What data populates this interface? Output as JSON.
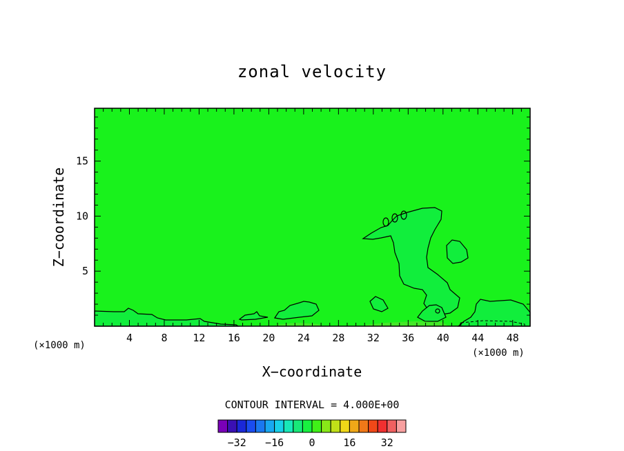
{
  "chart_data": {
    "type": "heatmap",
    "title": "zonal velocity",
    "xlabel": "X−coordinate",
    "ylabel": "Z−coordinate",
    "x_unit_left": "(×1000 m)",
    "x_unit_right": "(×1000 m)",
    "xlim": [
      0,
      50
    ],
    "ylim": [
      0,
      19.8
    ],
    "x_ticks": [
      4,
      8,
      12,
      16,
      20,
      24,
      28,
      32,
      36,
      40,
      44,
      48
    ],
    "y_ticks": [
      5,
      10,
      15
    ],
    "field_value_background": 0,
    "contour_interval_text": "CONTOUR INTERVAL = 4.000E+00",
    "colorbar": {
      "colors": [
        "#7a00b8",
        "#3a10b4",
        "#1a28d8",
        "#1a4cf0",
        "#1a78f0",
        "#18a8f0",
        "#18d0e8",
        "#18e8b8",
        "#18e878",
        "#18f040",
        "#40f018",
        "#88e818",
        "#c0e018",
        "#f0d818",
        "#f0a818",
        "#f07818",
        "#f04818",
        "#f03030",
        "#f06060",
        "#f8a0a0"
      ],
      "tick_values": [
        -32,
        -16,
        0,
        16,
        32
      ],
      "tick_labels": [
        "−32",
        "−16",
        "0",
        "16",
        "32"
      ],
      "range": [
        -40,
        40
      ]
    }
  }
}
